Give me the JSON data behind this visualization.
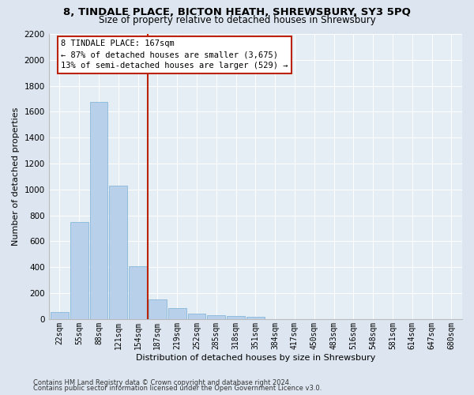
{
  "title1": "8, TINDALE PLACE, BICTON HEATH, SHREWSBURY, SY3 5PQ",
  "title2": "Size of property relative to detached houses in Shrewsbury",
  "xlabel": "Distribution of detached houses by size in Shrewsbury",
  "ylabel": "Number of detached properties",
  "footer1": "Contains HM Land Registry data © Crown copyright and database right 2024.",
  "footer2": "Contains public sector information licensed under the Open Government Licence v3.0.",
  "bins": [
    "22sqm",
    "55sqm",
    "88sqm",
    "121sqm",
    "154sqm",
    "187sqm",
    "219sqm",
    "252sqm",
    "285sqm",
    "318sqm",
    "351sqm",
    "384sqm",
    "417sqm",
    "450sqm",
    "483sqm",
    "516sqm",
    "548sqm",
    "581sqm",
    "614sqm",
    "647sqm",
    "680sqm"
  ],
  "values": [
    55,
    750,
    1675,
    1030,
    410,
    150,
    85,
    45,
    32,
    22,
    18,
    0,
    0,
    0,
    0,
    0,
    0,
    0,
    0,
    0,
    0
  ],
  "bar_color": "#b8d0ea",
  "bar_edge_color": "#7aafd4",
  "vline_color": "#bb2200",
  "annotation_line1": "8 TINDALE PLACE: 167sqm",
  "annotation_line2": "← 87% of detached houses are smaller (3,675)",
  "annotation_line3": "13% of semi-detached houses are larger (529) →",
  "annotation_box_facecolor": "#ffffff",
  "annotation_box_edgecolor": "#bb2200",
  "ylim": [
    0,
    2200
  ],
  "yticks": [
    0,
    200,
    400,
    600,
    800,
    1000,
    1200,
    1400,
    1600,
    1800,
    2000,
    2200
  ],
  "bg_color": "#dde6f0",
  "plot_bg_color": "#e5edf5",
  "title1_fontsize": 9.5,
  "title2_fontsize": 8.5,
  "xlabel_fontsize": 8,
  "ylabel_fontsize": 8,
  "tick_fontsize": 7,
  "footer_fontsize": 6,
  "ann_fontsize": 7.5
}
